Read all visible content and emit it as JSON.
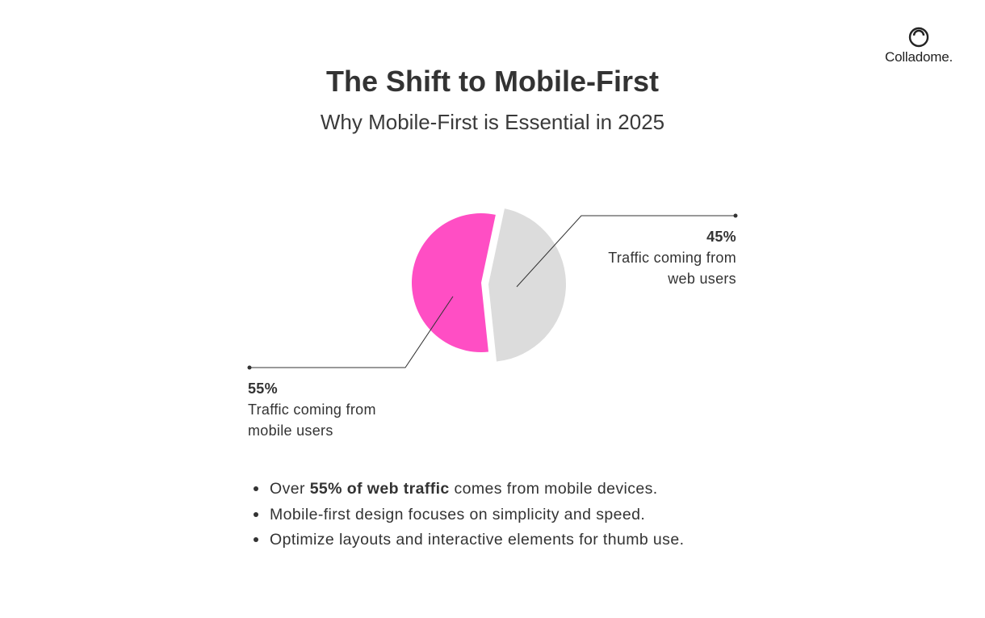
{
  "brand": {
    "logo_text": "Colladome.",
    "icon": "colladome-logo-icon"
  },
  "header": {
    "title": "The Shift to Mobile-First",
    "subtitle": "Why Mobile-First is Essential in 2025"
  },
  "chart_data": {
    "type": "pie",
    "title": "",
    "legend": "none",
    "slices": [
      {
        "label": "55%",
        "value": 55,
        "description": "Traffic coming from mobile users",
        "color": "#ff4ec4"
      },
      {
        "label": "45%",
        "value": 45,
        "description": "Traffic coming from web users",
        "color": "#dcdcdc"
      }
    ]
  },
  "bullets": [
    {
      "pre": "Over ",
      "bold": "55% of web traffic",
      "post": " comes from mobile devices."
    },
    {
      "pre": "Mobile-first design focuses on simplicity and speed.",
      "bold": "",
      "post": ""
    },
    {
      "pre": "Optimize layouts and interactive elements for thumb use.",
      "bold": "",
      "post": ""
    }
  ],
  "colors": {
    "text": "#333333",
    "mobile": "#ff4ec4",
    "web": "#dcdcdc",
    "leader": "#333333"
  }
}
